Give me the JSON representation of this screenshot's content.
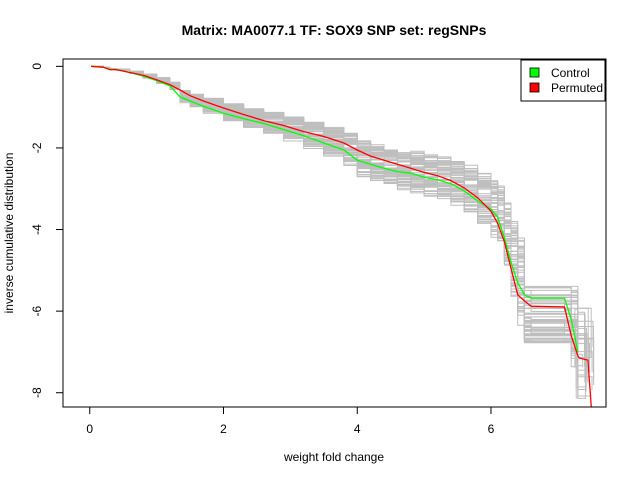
{
  "chart_data": {
    "type": "line",
    "title": "Matrix: MA0077.1 TF: SOX9 SNP set: regSNPs",
    "xlabel": "weight fold change",
    "ylabel": "inverse cumulative distribution",
    "xlim": [
      -0.4,
      7.72
    ],
    "ylim": [
      -8.35,
      0.18
    ],
    "xticks": [
      0,
      2,
      4,
      6
    ],
    "xtick_labels": [
      "0",
      "2",
      "4",
      "6"
    ],
    "yticks": [
      0,
      -2,
      -4,
      -6,
      -8
    ],
    "ytick_labels": [
      "0",
      "-2",
      "-4",
      "-6",
      "-8"
    ],
    "grid": false,
    "legend_position": "top-right",
    "legend": [
      {
        "label": "Control",
        "color": "#00ff00"
      },
      {
        "label": "Permuted",
        "color": "#ff0000"
      }
    ],
    "series": [
      {
        "name": "Permuted",
        "color": "#ff0000",
        "x": [
          0.02,
          0.2,
          0.3,
          0.4,
          0.6,
          0.8,
          1.0,
          1.2,
          1.35,
          1.5,
          1.7,
          2.0,
          2.3,
          2.6,
          2.9,
          3.2,
          3.5,
          3.8,
          4.0,
          4.2,
          4.4,
          4.6,
          4.8,
          5.0,
          5.2,
          5.4,
          5.6,
          5.8,
          6.0,
          6.1,
          6.2,
          6.3,
          6.4,
          6.5,
          6.6,
          7.1,
          7.2,
          7.3,
          7.32,
          7.45,
          7.5
        ],
        "y": [
          0.0,
          -0.02,
          -0.08,
          -0.08,
          -0.15,
          -0.22,
          -0.33,
          -0.45,
          -0.58,
          -0.72,
          -0.85,
          -1.02,
          -1.18,
          -1.33,
          -1.45,
          -1.6,
          -1.72,
          -1.88,
          -2.05,
          -2.2,
          -2.3,
          -2.4,
          -2.5,
          -2.6,
          -2.68,
          -2.8,
          -2.98,
          -3.22,
          -3.55,
          -3.85,
          -4.3,
          -4.95,
          -5.6,
          -5.75,
          -5.88,
          -5.9,
          -6.6,
          -7.1,
          -7.15,
          -7.2,
          -8.35
        ]
      },
      {
        "name": "Control",
        "color": "#00ff00",
        "x": [
          0.02,
          0.2,
          0.3,
          0.4,
          0.6,
          0.8,
          1.0,
          1.2,
          1.35,
          1.5,
          1.7,
          2.0,
          2.3,
          2.6,
          2.9,
          3.2,
          3.5,
          3.8,
          4.0,
          4.2,
          4.4,
          4.6,
          4.8,
          5.0,
          5.2,
          5.4,
          5.6,
          5.8,
          6.0,
          6.1,
          6.2,
          6.3,
          6.4,
          6.5,
          6.6,
          7.1,
          7.2,
          7.3
        ],
        "y": [
          0.0,
          -0.02,
          -0.07,
          -0.08,
          -0.15,
          -0.24,
          -0.35,
          -0.48,
          -0.75,
          -0.85,
          -0.98,
          -1.15,
          -1.28,
          -1.4,
          -1.55,
          -1.7,
          -1.88,
          -2.05,
          -2.3,
          -2.4,
          -2.5,
          -2.58,
          -2.62,
          -2.72,
          -2.78,
          -2.88,
          -3.05,
          -3.3,
          -3.5,
          -3.7,
          -4.2,
          -4.8,
          -5.3,
          -5.6,
          -5.68,
          -5.68,
          -6.2,
          -7.0
        ]
      }
    ]
  }
}
